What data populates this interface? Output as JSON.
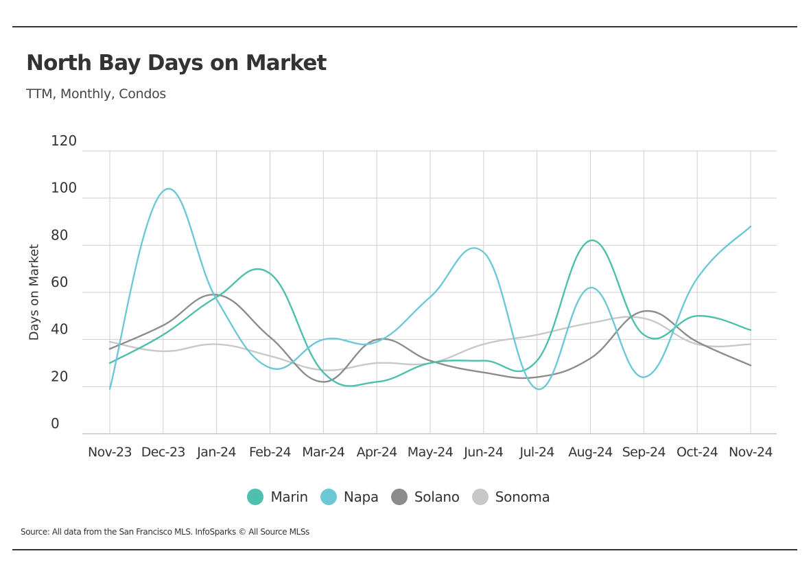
{
  "header": {
    "title": "North Bay Days on Market",
    "subtitle": "TTM, Monthly, Condos"
  },
  "footer": {
    "source": "Source:  All data from the San Francisco MLS. InfoSparks © All Source MLSs"
  },
  "chart_data": {
    "type": "line",
    "title": "North Bay Days on Market",
    "subtitle": "TTM, Monthly, Condos",
    "xlabel": "",
    "ylabel": "Days on Market",
    "ylim": [
      0,
      120
    ],
    "yticks": [
      0,
      20,
      40,
      60,
      80,
      100,
      120
    ],
    "grid": true,
    "legend_position": "bottom",
    "categories": [
      "Nov-23",
      "Dec-23",
      "Jan-24",
      "Feb-24",
      "Mar-24",
      "Apr-24",
      "May-24",
      "Jun-24",
      "Jul-24",
      "Aug-24",
      "Sep-24",
      "Oct-24",
      "Nov-24"
    ],
    "series": [
      {
        "name": "Marin",
        "color": "#4dbfac",
        "values": [
          30,
          42,
          58,
          68,
          26,
          22,
          30,
          31,
          31,
          82,
          42,
          50,
          44
        ]
      },
      {
        "name": "Napa",
        "color": "#6cc8d4",
        "values": [
          19,
          103,
          57,
          28,
          40,
          39,
          58,
          77,
          19,
          62,
          24,
          66,
          88
        ]
      },
      {
        "name": "Solano",
        "color": "#8c8c8c",
        "values": [
          36,
          46,
          59,
          41,
          22,
          40,
          31,
          26,
          24,
          32,
          52,
          39,
          29
        ]
      },
      {
        "name": "Sonoma",
        "color": "#c8c8c8",
        "values": [
          39,
          35,
          38,
          33,
          27,
          30,
          30,
          38,
          42,
          47,
          49,
          38,
          38
        ]
      }
    ]
  }
}
